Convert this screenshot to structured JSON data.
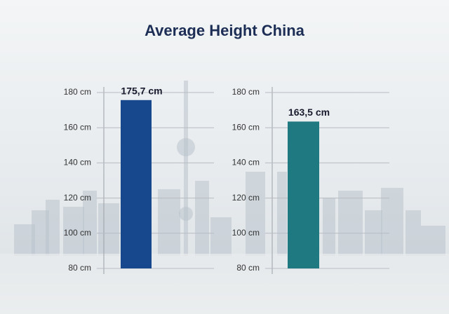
{
  "title": "Average Height China",
  "chart_data": [
    {
      "type": "bar",
      "categories": [
        null
      ],
      "values": [
        175.7
      ],
      "value_labels": [
        "175,7 cm"
      ],
      "color": "#17478c",
      "ylim": [
        80,
        180
      ],
      "yticks": [
        {
          "value": 80,
          "label": "80 cm"
        },
        {
          "value": 100,
          "label": "100 cm"
        },
        {
          "value": 120,
          "label": "120 cm"
        },
        {
          "value": 140,
          "label": "140 cm"
        },
        {
          "value": 160,
          "label": "160 cm"
        },
        {
          "value": 180,
          "label": "180 cm"
        }
      ],
      "grid": true
    },
    {
      "type": "bar",
      "categories": [
        null
      ],
      "values": [
        163.5
      ],
      "value_labels": [
        "163,5 cm"
      ],
      "color": "#1e7a80",
      "ylim": [
        80,
        180
      ],
      "yticks": [
        {
          "value": 80,
          "label": "80 cm"
        },
        {
          "value": 100,
          "label": "100 cm"
        },
        {
          "value": 120,
          "label": "120 cm"
        },
        {
          "value": 140,
          "label": "140 cm"
        },
        {
          "value": 160,
          "label": "160 cm"
        },
        {
          "value": 180,
          "label": "180 cm"
        }
      ],
      "grid": true
    }
  ]
}
